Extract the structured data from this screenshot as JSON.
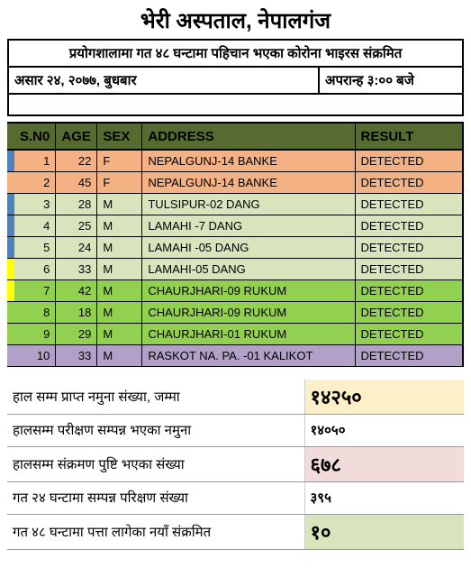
{
  "title": "भेरी अस्पताल, नेपालगंज",
  "subtitle": "प्रयोगशालामा गत ४८ घन्टामा पहिचान भएका कोरोना भाइरस संक्रमित",
  "date_line": {
    "left": "असार २४, २०७७, बुधबार",
    "right": "अपरान्ह ३:०० बजे"
  },
  "table": {
    "header_bg": "#556b2f",
    "columns": [
      "S.N0",
      "AGE",
      "SEX",
      "ADDRESS",
      "RESULT"
    ],
    "rows": [
      {
        "sno": "1",
        "age": "22",
        "sex": "F",
        "address": "NEPALGUNJ-14 BANKE",
        "result": "DETECTED",
        "row_bg": "#f4b183",
        "marker": "#4f81bd"
      },
      {
        "sno": "2",
        "age": "45",
        "sex": "F",
        "address": "NEPALGUNJ-14 BANKE",
        "result": "DETECTED",
        "row_bg": "#f4b183",
        "marker": ""
      },
      {
        "sno": "3",
        "age": "28",
        "sex": "M",
        "address": "TULSIPUR-02 DANG",
        "result": "DETECTED",
        "row_bg": "#d8e4bc",
        "marker": "#4f81bd"
      },
      {
        "sno": "4",
        "age": "25",
        "sex": "M",
        "address": "LAMAHI -7 DANG",
        "result": "DETECTED",
        "row_bg": "#d8e4bc",
        "marker": "#4f81bd"
      },
      {
        "sno": "5",
        "age": "24",
        "sex": "M",
        "address": "LAMAHI -05 DANG",
        "result": "DETECTED",
        "row_bg": "#d8e4bc",
        "marker": "#4f81bd"
      },
      {
        "sno": "6",
        "age": "33",
        "sex": "M",
        "address": "LAMAHI-05 DANG",
        "result": "DETECTED",
        "row_bg": "#d8e4bc",
        "marker": "#ffff00"
      },
      {
        "sno": "7",
        "age": "42",
        "sex": "M",
        "address": "CHAURJHARI-09 RUKUM",
        "result": "DETECTED",
        "row_bg": "#92d050",
        "marker": "#ffff00"
      },
      {
        "sno": "8",
        "age": "18",
        "sex": "M",
        "address": "CHAURJHARI-09 RUKUM",
        "result": "DETECTED",
        "row_bg": "#92d050",
        "marker": ""
      },
      {
        "sno": "9",
        "age": "29",
        "sex": "M",
        "address": "CHAURJHARI-01 RUKUM",
        "result": "DETECTED",
        "row_bg": "#92d050",
        "marker": ""
      },
      {
        "sno": "10",
        "age": "33",
        "sex": "M",
        "address": "RASKOT NA. PA. -01 KALIKOT",
        "result": "DETECTED",
        "row_bg": "#b1a0c7",
        "marker": ""
      }
    ]
  },
  "summary": [
    {
      "label": "हाल सम्म प्राप्त नमुना संख्या,  जम्मा",
      "value": "१४२५०",
      "value_bg": "#fdf0c8",
      "value_size": "22px"
    },
    {
      "label": "हालसम्म परीक्षण सम्पन्न भएका नमुना",
      "value": "१४०५०",
      "value_bg": "",
      "value_size": "15px"
    },
    {
      "label": "हालसम्म संक्रमण पुष्टि भएका संख्या",
      "value": "६७८",
      "value_bg": "#f2dcdb",
      "value_size": "22px"
    },
    {
      "label": "गत २४ घन्टामा सम्पन्न परिक्षण संख्या",
      "value": "३९५",
      "value_bg": "",
      "value_size": "15px"
    },
    {
      "label": "गत ४८ घन्टामा पत्ता लागेका नयाँ संक्रमित",
      "value": "१०",
      "value_bg": "#d8e4bc",
      "value_size": "22px"
    }
  ]
}
